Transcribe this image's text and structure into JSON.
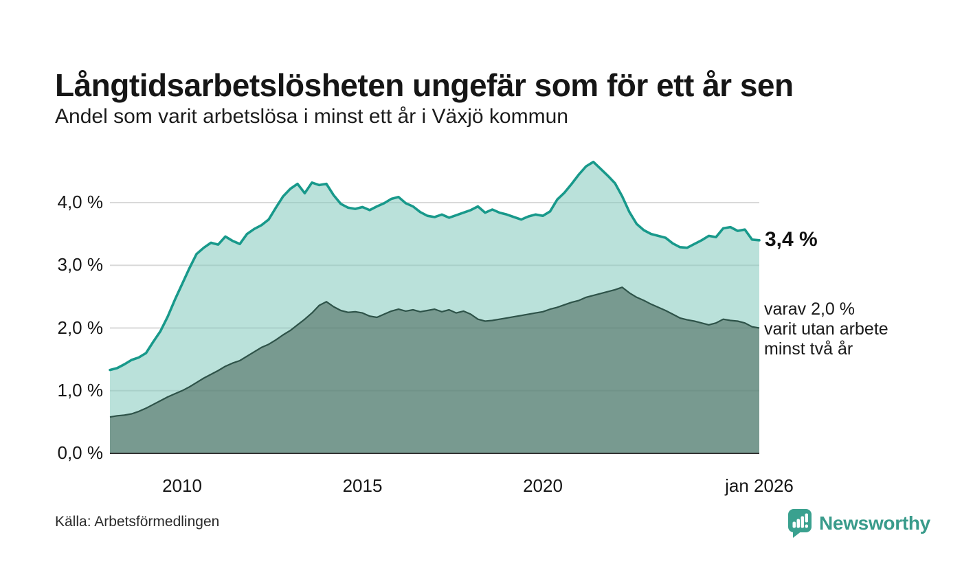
{
  "header": {
    "title": "Långtidsarbetslösheten ungefär som för ett år sen",
    "subtitle": "Andel som varit arbetslösa i minst ett år i Växjö kommun"
  },
  "footer": {
    "source": "Källa: Arbetsförmedlingen",
    "brand": "Newsworthy"
  },
  "colors": {
    "accent_teal": "#18998b",
    "dark_line": "#2e5349",
    "light_area_fill": "rgba(130,200,188,0.55)",
    "dark_area_fill": "rgba(79,110,98,0.62)",
    "gridline": "#d9d9d9",
    "axis_line": "#333333",
    "brand_teal": "#3aa18f"
  },
  "icons": {
    "brand_icon": "newsworthy-speech-bubble-bar-chart-icon"
  },
  "chart_data": {
    "type": "area",
    "title": "Långtidsarbetslösheten ungefär som för ett år sen",
    "subtitle": "Andel som varit arbetslösa i minst ett år i Växjö kommun",
    "unit": "%",
    "xlim": [
      2008,
      2026
    ],
    "ylim": [
      0,
      4.6
    ],
    "grid": true,
    "x_ticks": [
      {
        "year": 2010,
        "label": "2010"
      },
      {
        "year": 2015,
        "label": "2015"
      },
      {
        "year": 2020,
        "label": "2020"
      },
      {
        "year": 2026,
        "label": "jan 2026"
      }
    ],
    "y_ticks": [
      {
        "value": 0,
        "label": "0,0 %"
      },
      {
        "value": 1,
        "label": "1,0 %"
      },
      {
        "value": 2,
        "label": "2,0 %"
      },
      {
        "value": 3,
        "label": "3,0 %"
      },
      {
        "value": 4,
        "label": "4,0 %"
      }
    ],
    "x": [
      2008,
      2008.2,
      2008.4,
      2008.6,
      2008.8,
      2009,
      2009.2,
      2009.4,
      2009.6,
      2009.8,
      2010,
      2010.2,
      2010.4,
      2010.6,
      2010.8,
      2011,
      2011.2,
      2011.4,
      2011.6,
      2011.8,
      2012,
      2012.2,
      2012.4,
      2012.6,
      2012.8,
      2013,
      2013.2,
      2013.4,
      2013.6,
      2013.8,
      2014,
      2014.2,
      2014.4,
      2014.6,
      2014.8,
      2015,
      2015.2,
      2015.4,
      2015.6,
      2015.8,
      2016,
      2016.2,
      2016.4,
      2016.6,
      2016.8,
      2017,
      2017.2,
      2017.4,
      2017.6,
      2017.8,
      2018,
      2018.2,
      2018.4,
      2018.6,
      2018.8,
      2019,
      2019.2,
      2019.4,
      2019.6,
      2019.8,
      2020,
      2020.2,
      2020.4,
      2020.6,
      2020.8,
      2021,
      2021.2,
      2021.4,
      2021.6,
      2021.8,
      2022,
      2022.2,
      2022.4,
      2022.6,
      2022.8,
      2023,
      2023.2,
      2023.4,
      2023.6,
      2023.8,
      2024,
      2024.2,
      2024.4,
      2024.6,
      2024.8,
      2025,
      2025.2,
      2025.4,
      2025.6,
      2025.8,
      2026
    ],
    "series": [
      {
        "name": "Arbetslösa minst ett år",
        "color": "#18998b",
        "fill": "rgba(130,200,188,0.55)",
        "values": [
          1.33,
          1.36,
          1.42,
          1.49,
          1.53,
          1.6,
          1.78,
          1.95,
          2.18,
          2.45,
          2.7,
          2.95,
          3.18,
          3.28,
          3.36,
          3.33,
          3.46,
          3.39,
          3.34,
          3.5,
          3.58,
          3.64,
          3.73,
          3.92,
          4.1,
          4.22,
          4.3,
          4.15,
          4.32,
          4.28,
          4.3,
          4.12,
          3.98,
          3.92,
          3.9,
          3.93,
          3.88,
          3.94,
          3.99,
          4.06,
          4.09,
          3.99,
          3.94,
          3.85,
          3.79,
          3.77,
          3.81,
          3.76,
          3.8,
          3.84,
          3.88,
          3.94,
          3.84,
          3.89,
          3.84,
          3.81,
          3.77,
          3.73,
          3.78,
          3.81,
          3.79,
          3.86,
          4.05,
          4.16,
          4.3,
          4.45,
          4.58,
          4.65,
          4.54,
          4.43,
          4.31,
          4.1,
          3.85,
          3.66,
          3.56,
          3.5,
          3.47,
          3.44,
          3.35,
          3.29,
          3.28,
          3.34,
          3.4,
          3.47,
          3.45,
          3.59,
          3.61,
          3.55,
          3.57,
          3.41,
          3.4
        ]
      },
      {
        "name": "Arbetslösa minst två år",
        "color": "#2e5349",
        "fill": "rgba(79,110,98,0.62)",
        "values": [
          0.58,
          0.6,
          0.61,
          0.63,
          0.67,
          0.72,
          0.78,
          0.84,
          0.9,
          0.95,
          1.0,
          1.06,
          1.13,
          1.2,
          1.26,
          1.32,
          1.39,
          1.44,
          1.48,
          1.55,
          1.62,
          1.69,
          1.74,
          1.81,
          1.89,
          1.96,
          2.05,
          2.14,
          2.24,
          2.36,
          2.42,
          2.34,
          2.28,
          2.25,
          2.26,
          2.24,
          2.19,
          2.17,
          2.22,
          2.27,
          2.3,
          2.27,
          2.29,
          2.26,
          2.28,
          2.3,
          2.26,
          2.29,
          2.24,
          2.27,
          2.22,
          2.14,
          2.11,
          2.12,
          2.14,
          2.16,
          2.18,
          2.2,
          2.22,
          2.24,
          2.26,
          2.3,
          2.33,
          2.37,
          2.41,
          2.44,
          2.49,
          2.52,
          2.55,
          2.58,
          2.61,
          2.65,
          2.56,
          2.49,
          2.44,
          2.38,
          2.33,
          2.28,
          2.22,
          2.16,
          2.13,
          2.11,
          2.08,
          2.05,
          2.08,
          2.14,
          2.12,
          2.11,
          2.08,
          2.02,
          2.0
        ]
      }
    ],
    "annotations": {
      "end_value_label": {
        "text": "3,4 %",
        "value": 3.4
      },
      "secondary_label": {
        "lines": [
          "varav 2,0 %",
          "varit utan arbete",
          "minst två år"
        ],
        "anchor_value": 2.0
      }
    }
  }
}
